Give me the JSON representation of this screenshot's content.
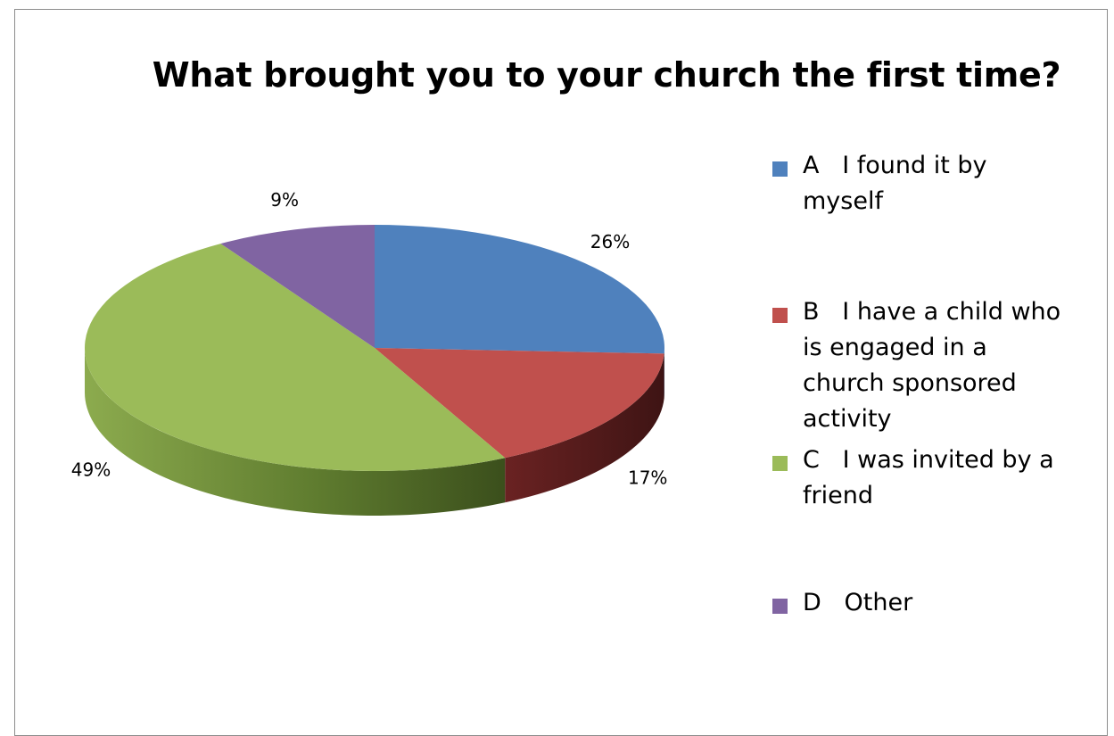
{
  "chart_data": {
    "type": "pie",
    "title": "What brought you to your church the first time?",
    "slices": [
      {
        "label": "A   I found it by myself",
        "value": 26,
        "data_label": "26%",
        "color": "#4F81BD",
        "side_color": "#2C4D75"
      },
      {
        "label": "B   I have a child who is engaged in a church sponsored activity",
        "value": 17,
        "data_label": "17%",
        "color": "#C0504D",
        "side_color": "#5A1E1E"
      },
      {
        "label": "C   I was invited by a friend",
        "value": 49,
        "data_label": "49%",
        "color": "#9BBB59",
        "side_color": "#6B8A3A"
      },
      {
        "label": "D   Other",
        "value": 9,
        "data_label": "9%",
        "color": "#8064A2",
        "side_color": "#4E3A66"
      }
    ],
    "legend_position": "right",
    "three_d": true
  }
}
